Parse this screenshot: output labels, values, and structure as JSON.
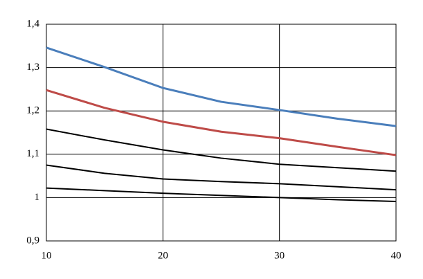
{
  "chart_data": {
    "type": "line",
    "x": [
      10,
      15,
      20,
      25,
      30,
      35,
      40
    ],
    "series": [
      {
        "color": "#4a7ebb",
        "values": [
          1.346,
          1.301,
          1.253,
          1.221,
          1.202,
          1.182,
          1.165
        ]
      },
      {
        "color": "#be4b48",
        "values": [
          1.248,
          1.207,
          1.175,
          1.152,
          1.137,
          1.117,
          1.098
        ]
      },
      {
        "color": "#000000",
        "values": [
          1.158,
          1.133,
          1.11,
          1.091,
          1.077,
          1.069,
          1.061
        ]
      },
      {
        "color": "#000000",
        "values": [
          1.075,
          1.056,
          1.043,
          1.037,
          1.032,
          1.025,
          1.018
        ]
      },
      {
        "color": "#000000",
        "values": [
          1.022,
          1.016,
          1.01,
          1.005,
          1.0,
          0.995,
          0.991
        ]
      }
    ],
    "xlim": [
      10,
      40
    ],
    "xticks": [
      10,
      20,
      30,
      40
    ],
    "ylim": [
      0.9,
      1.4
    ],
    "yticks": [
      {
        "value": 0.9,
        "label": "0,9"
      },
      1,
      {
        "value": 1.1,
        "label": "1,1"
      },
      {
        "value": 1.2,
        "label": "1,2"
      },
      {
        "value": 1.3,
        "label": "1,3"
      },
      {
        "value": 1.4,
        "label": "1,4"
      }
    ],
    "grid": true
  }
}
